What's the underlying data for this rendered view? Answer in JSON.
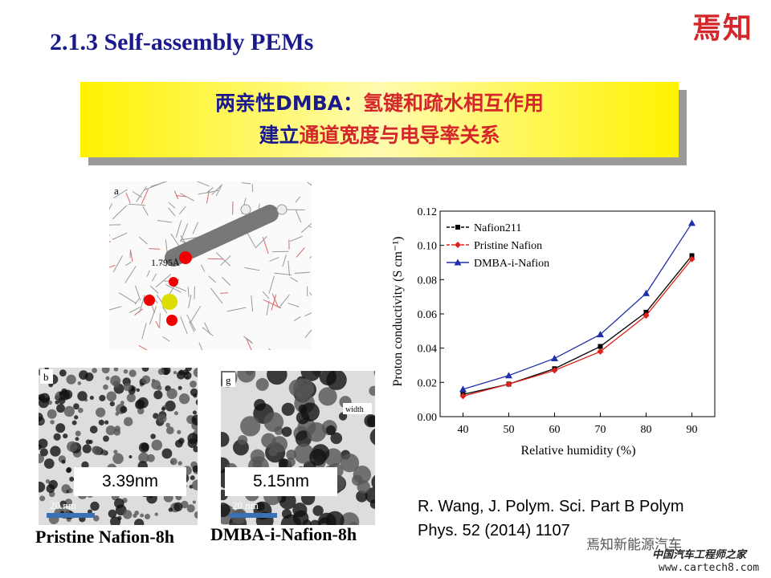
{
  "slide": {
    "title": "2.1.3 Self-assembly PEMs",
    "logo": "焉知",
    "banner": {
      "line1_blue": "两亲性DMBA：",
      "line1_red": "氢键和疏水相互作用",
      "line2_blue": "建立",
      "line2_red": "通道宽度与电导率关系"
    },
    "molecule": {
      "panel": "a",
      "distance": "1.795Å"
    },
    "tem_left": {
      "panel": "b",
      "width_label": "3.39nm",
      "scale": "20 nm",
      "caption": "Pristine Nafion-8h"
    },
    "tem_right": {
      "panel": "g",
      "marker": "width",
      "width_label": "5.15nm",
      "scale": "20 nm",
      "caption": "DMBA-i-Nafion-8h"
    },
    "reference": {
      "line1": "R. Wang, J. Polym. Sci. Part B Polym",
      "line2": "Phys. 52 (2014) 1107"
    },
    "watermark": {
      "account": "焉知新能源汽车",
      "site_name": "中国汽车工程师之家",
      "url": "www.cartech8.com"
    }
  },
  "chart_data": {
    "type": "line",
    "x_label": "Relative humidity (%)",
    "y_label": "Proton conductivity (S cm⁻¹)",
    "x": [
      40,
      50,
      60,
      70,
      80,
      90
    ],
    "xlim": [
      35,
      95
    ],
    "xticks": [
      40,
      50,
      60,
      70,
      80,
      90
    ],
    "ylim": [
      0,
      0.12
    ],
    "yticks": [
      {
        "value": 0,
        "label": "0.00"
      },
      0.02,
      0.04,
      0.06,
      0.08,
      {
        "value": 0.1,
        "label": "0.10"
      },
      0.12
    ],
    "legend": "upper left",
    "series": [
      {
        "name": "Nafion211",
        "color": "#000000",
        "marker": "square",
        "values": [
          0.013,
          0.019,
          0.028,
          0.041,
          0.061,
          0.094
        ]
      },
      {
        "name": "Pristine Nafion",
        "color": "#e0201b",
        "marker": "diamond",
        "values": [
          0.012,
          0.019,
          0.027,
          0.038,
          0.059,
          0.092
        ]
      },
      {
        "name": "DMBA-i-Nafion",
        "color": "#1f2fa8",
        "marker": "triangle",
        "values": [
          0.016,
          0.024,
          0.034,
          0.048,
          0.072,
          0.113
        ]
      }
    ]
  }
}
